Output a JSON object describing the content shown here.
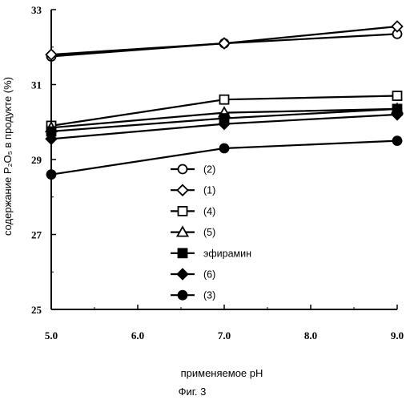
{
  "chart_data": {
    "type": "line",
    "xlabel": "применяемое pH",
    "ylabel": "содержание P₂O₅ в продукте (%)",
    "caption": "Фиг. 3",
    "xlim": [
      5.0,
      9.0
    ],
    "ylim": [
      25,
      33
    ],
    "xticks": [
      "5.0",
      "6.0",
      "7.0",
      "8.0",
      "9.0"
    ],
    "yticks": [
      "25",
      "27",
      "29",
      "31",
      "33"
    ],
    "legend_position": "center",
    "grid": false,
    "series": [
      {
        "name": "(2)",
        "marker": "circle-open",
        "x": [
          5.0,
          7.0,
          9.0
        ],
        "y": [
          31.75,
          32.1,
          32.35
        ]
      },
      {
        "name": "(1)",
        "marker": "diamond-open",
        "x": [
          5.0,
          7.0,
          9.0
        ],
        "y": [
          31.8,
          32.1,
          32.55
        ]
      },
      {
        "name": "(4)",
        "marker": "square-open",
        "x": [
          5.0,
          7.0,
          9.0
        ],
        "y": [
          29.9,
          30.6,
          30.7
        ]
      },
      {
        "name": "(5)",
        "marker": "triangle-open",
        "x": [
          5.0,
          7.0,
          9.0
        ],
        "y": [
          29.85,
          30.25,
          30.35
        ]
      },
      {
        "name": "эфирамин",
        "marker": "square-filled",
        "x": [
          5.0,
          7.0,
          9.0
        ],
        "y": [
          29.75,
          30.1,
          30.35
        ]
      },
      {
        "name": "(6)",
        "marker": "diamond-filled",
        "x": [
          5.0,
          7.0,
          9.0
        ],
        "y": [
          29.55,
          29.95,
          30.2
        ]
      },
      {
        "name": "(3)",
        "marker": "circle-filled",
        "x": [
          5.0,
          7.0,
          9.0
        ],
        "y": [
          28.6,
          29.3,
          29.5
        ]
      }
    ]
  }
}
